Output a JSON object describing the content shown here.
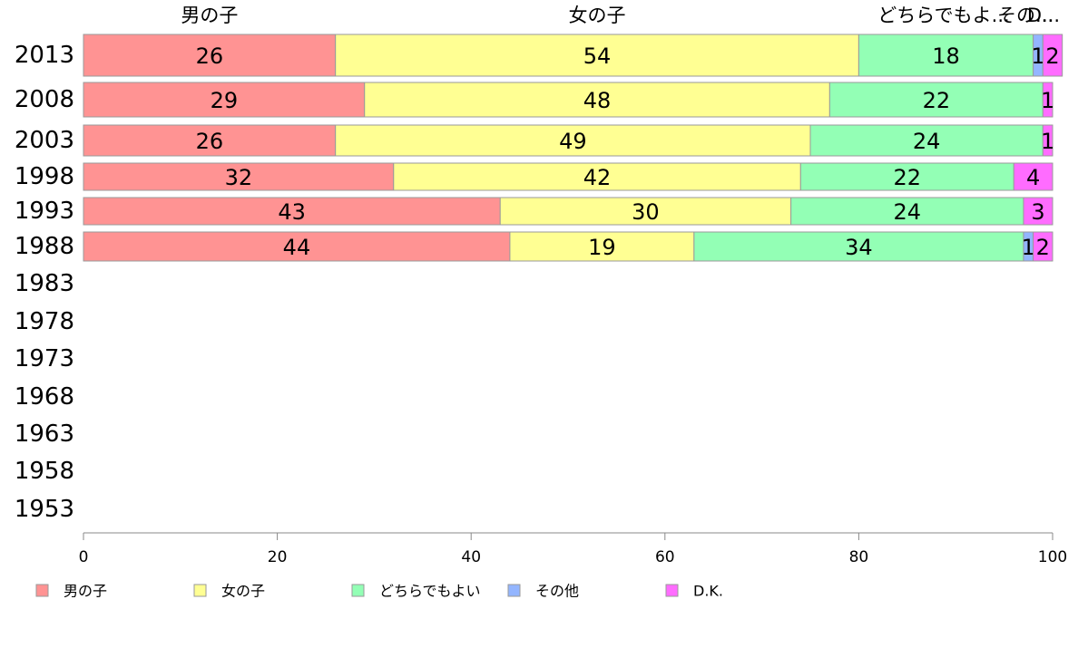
{
  "chart_data": {
    "type": "bar",
    "orientation": "horizontal",
    "stacked": true,
    "categories": [
      "2013",
      "2008",
      "2003",
      "1998",
      "1993",
      "1988",
      "1983",
      "1978",
      "1973",
      "1968",
      "1963",
      "1958",
      "1953"
    ],
    "series": [
      {
        "name": "男の子",
        "color": "#ff9393",
        "values": [
          26,
          29,
          26,
          32,
          43,
          44,
          null,
          null,
          null,
          null,
          null,
          null,
          null
        ]
      },
      {
        "name": "女の子",
        "color": "#ffff93",
        "values": [
          54,
          48,
          49,
          42,
          30,
          19,
          null,
          null,
          null,
          null,
          null,
          null,
          null
        ]
      },
      {
        "name": "どちらでもよい",
        "color": "#93ffb5",
        "values": [
          18,
          22,
          24,
          22,
          24,
          34,
          null,
          null,
          null,
          null,
          null,
          null,
          null
        ]
      },
      {
        "name": "その他",
        "color": "#93b5ff",
        "values": [
          1,
          0,
          0,
          0,
          0,
          1,
          null,
          null,
          null,
          null,
          null,
          null,
          null
        ]
      },
      {
        "name": "D.K.",
        "color": "#ff6cff",
        "values": [
          2,
          1,
          1,
          4,
          3,
          2,
          null,
          null,
          null,
          null,
          null,
          null,
          null
        ]
      }
    ],
    "top_labels": [
      "男の子",
      "女の子",
      "どちらでもよ...",
      "その...",
      "D..."
    ],
    "xlim": [
      0,
      100
    ],
    "xticks": [
      "0",
      "20",
      "40",
      "60",
      "80",
      "100"
    ],
    "grid": false,
    "legend_position": "bottom"
  }
}
